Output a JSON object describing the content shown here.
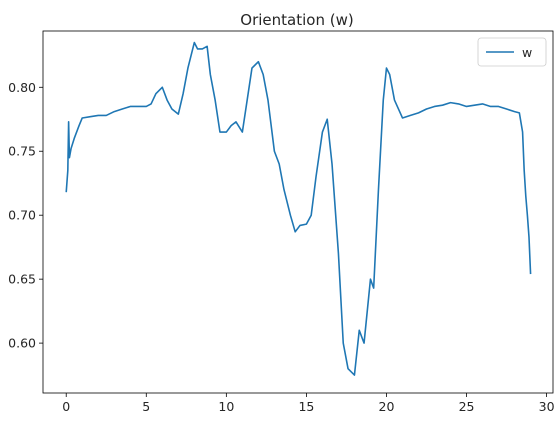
{
  "chart_data": {
    "type": "line",
    "title": "Orientation (w)",
    "xlabel": "",
    "ylabel": "",
    "xlim": [
      -1.45,
      30.4
    ],
    "ylim": [
      0.561,
      0.844
    ],
    "xticks": [
      0,
      5,
      10,
      15,
      20,
      25,
      30
    ],
    "yticks": [
      0.6,
      0.65,
      0.7,
      0.75,
      0.8
    ],
    "xtick_labels": [
      "0",
      "5",
      "10",
      "15",
      "20",
      "25",
      "30"
    ],
    "ytick_labels": [
      "0.60",
      "0.65",
      "0.70",
      "0.75",
      "0.80"
    ],
    "grid": false,
    "legend_position": "top-right",
    "series_color": "#1f77b4",
    "series": [
      {
        "name": "w",
        "x": [
          0.0,
          0.1,
          0.15,
          0.2,
          0.3,
          0.5,
          0.8,
          1.0,
          1.5,
          2.0,
          2.5,
          3.0,
          3.5,
          4.0,
          4.5,
          5.0,
          5.3,
          5.6,
          6.0,
          6.3,
          6.6,
          7.0,
          7.3,
          7.6,
          8.0,
          8.2,
          8.5,
          8.8,
          9.0,
          9.3,
          9.6,
          10.0,
          10.3,
          10.6,
          11.0,
          11.3,
          11.6,
          12.0,
          12.3,
          12.6,
          13.0,
          13.3,
          13.6,
          14.0,
          14.3,
          14.6,
          15.0,
          15.3,
          15.6,
          16.0,
          16.3,
          16.6,
          17.0,
          17.3,
          17.6,
          18.0,
          18.3,
          18.6,
          19.0,
          19.2,
          19.5,
          19.8,
          20.0,
          20.2,
          20.5,
          21.0,
          21.5,
          22.0,
          22.5,
          23.0,
          23.5,
          24.0,
          24.5,
          25.0,
          25.5,
          26.0,
          26.5,
          27.0,
          27.5,
          28.0,
          28.3,
          28.5,
          28.6,
          28.7,
          28.8,
          28.9,
          29.0
        ],
        "values": [
          0.718,
          0.735,
          0.773,
          0.745,
          0.752,
          0.76,
          0.77,
          0.776,
          0.777,
          0.778,
          0.778,
          0.781,
          0.783,
          0.785,
          0.785,
          0.785,
          0.787,
          0.795,
          0.8,
          0.79,
          0.783,
          0.779,
          0.795,
          0.815,
          0.835,
          0.83,
          0.83,
          0.832,
          0.81,
          0.79,
          0.765,
          0.765,
          0.77,
          0.773,
          0.765,
          0.79,
          0.815,
          0.82,
          0.81,
          0.79,
          0.75,
          0.74,
          0.72,
          0.7,
          0.687,
          0.692,
          0.693,
          0.7,
          0.73,
          0.765,
          0.775,
          0.74,
          0.67,
          0.6,
          0.58,
          0.575,
          0.61,
          0.6,
          0.65,
          0.643,
          0.72,
          0.79,
          0.815,
          0.81,
          0.79,
          0.776,
          0.778,
          0.78,
          0.783,
          0.785,
          0.786,
          0.788,
          0.787,
          0.785,
          0.786,
          0.787,
          0.785,
          0.785,
          0.783,
          0.781,
          0.78,
          0.765,
          0.735,
          0.715,
          0.7,
          0.683,
          0.654
        ]
      }
    ]
  }
}
